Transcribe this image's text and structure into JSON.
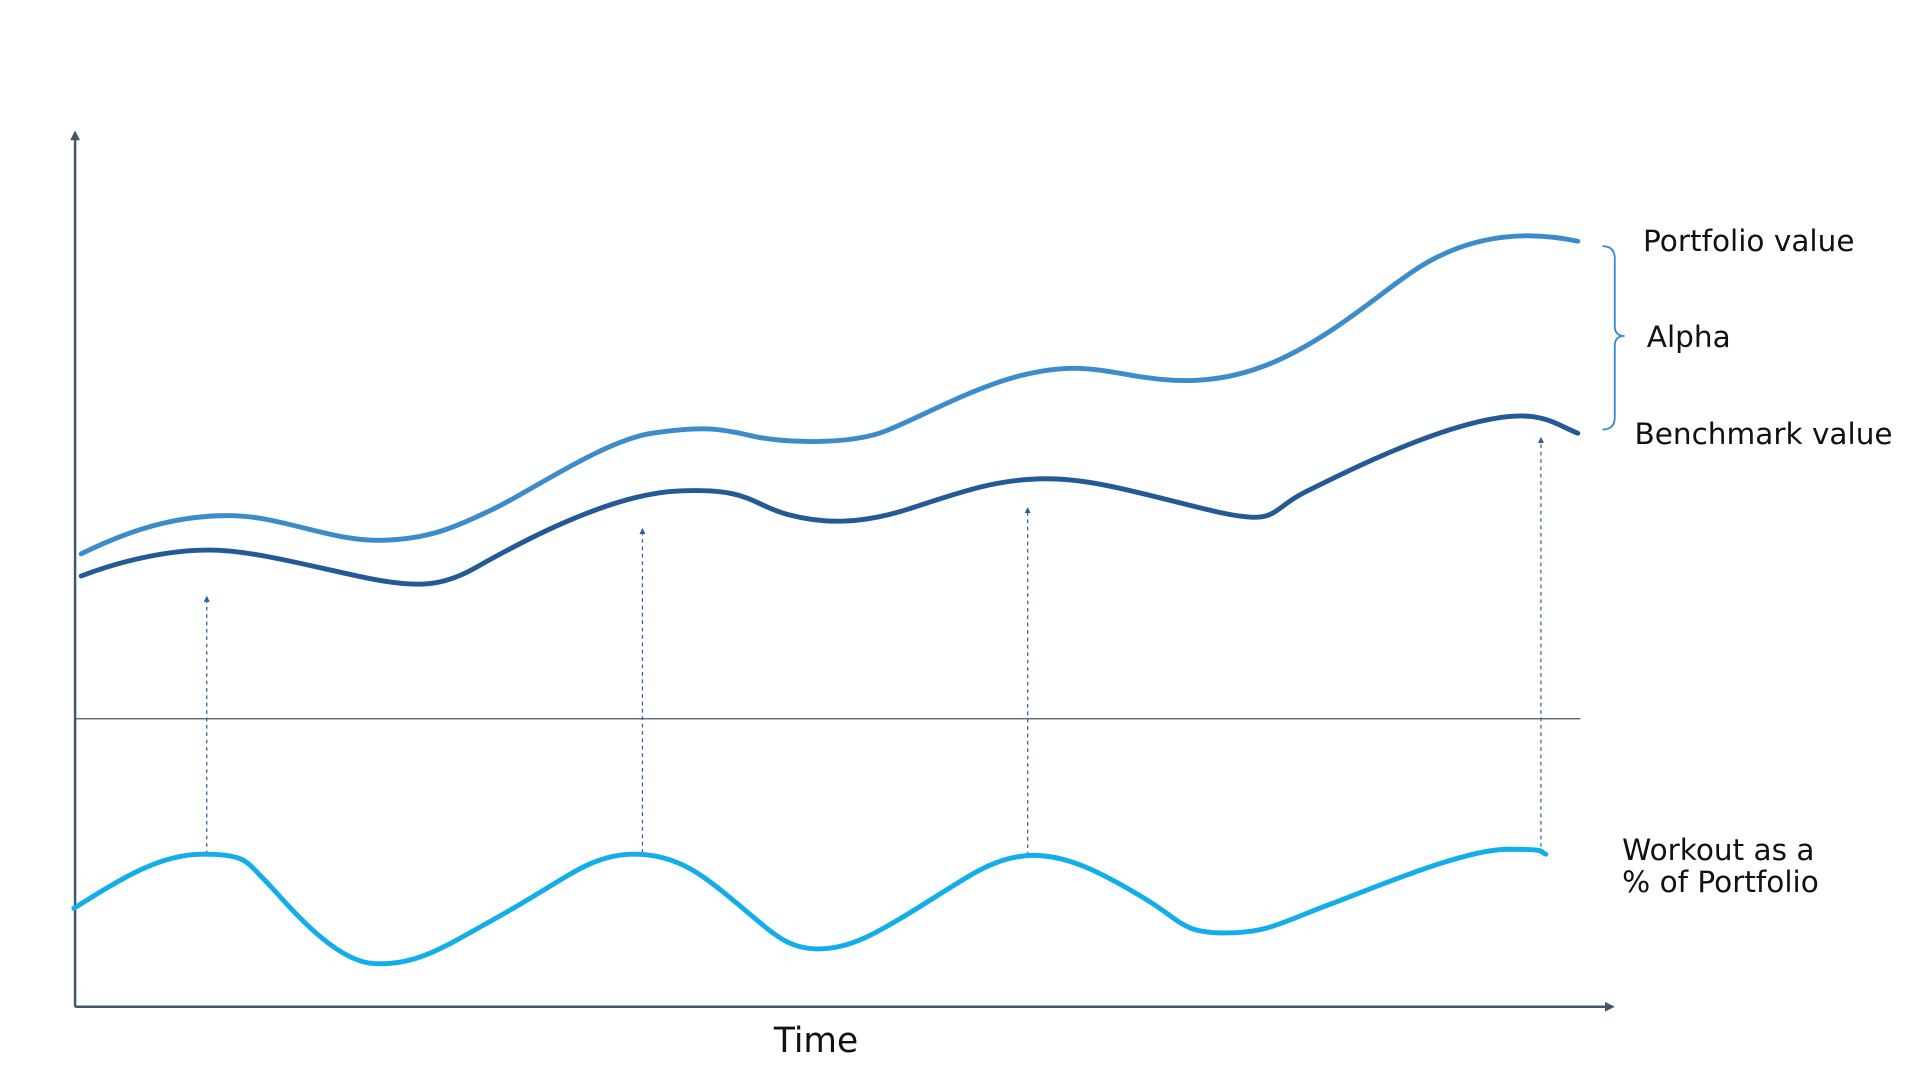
{
  "labels": {
    "portfolio": "Portfolio value",
    "alpha": "Alpha",
    "benchmark": "Benchmark value",
    "workout": [
      "Workout as a",
      "% of Portfolio"
    ]
  },
  "x_axis_label": "Time"
}
